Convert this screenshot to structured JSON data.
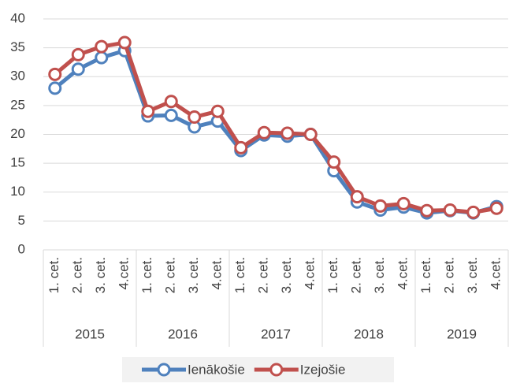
{
  "chart_data": {
    "type": "line",
    "categories": [
      "1. cet.",
      "2. cet.",
      "3. cet.",
      "4.cet.",
      "1. cet.",
      "2. cet.",
      "3. cet.",
      "4.cet.",
      "1. cet.",
      "2. cet.",
      "3. cet.",
      "4.cet.",
      "1. cet.",
      "2. cet.",
      "3. cet.",
      "4.cet.",
      "1. cet.",
      "2. cet.",
      "3. cet.",
      "4.cet."
    ],
    "groups": [
      "2015",
      "2016",
      "2017",
      "2018",
      "2019"
    ],
    "series": [
      {
        "name": "Ienākošie",
        "color": "#4f81bd",
        "values": [
          28,
          31.3,
          33.3,
          34.5,
          23.2,
          23.3,
          21.3,
          22.3,
          17.2,
          19.9,
          19.7,
          20.0,
          13.7,
          8.3,
          6.9,
          7.4,
          6.4,
          6.8,
          6.4,
          7.5
        ]
      },
      {
        "name": "Izejošie",
        "color": "#c0504d",
        "values": [
          30.4,
          33.8,
          35.2,
          35.9,
          24.0,
          25.7,
          23.0,
          24.0,
          17.7,
          20.3,
          20.2,
          20.0,
          15.2,
          9.2,
          7.6,
          8.0,
          6.8,
          6.9,
          6.5,
          7.2
        ]
      }
    ],
    "ylim": [
      0,
      40
    ],
    "yticks": [
      0,
      5,
      10,
      15,
      20,
      25,
      30,
      35,
      40
    ],
    "grid": true,
    "legend": "bottom"
  }
}
